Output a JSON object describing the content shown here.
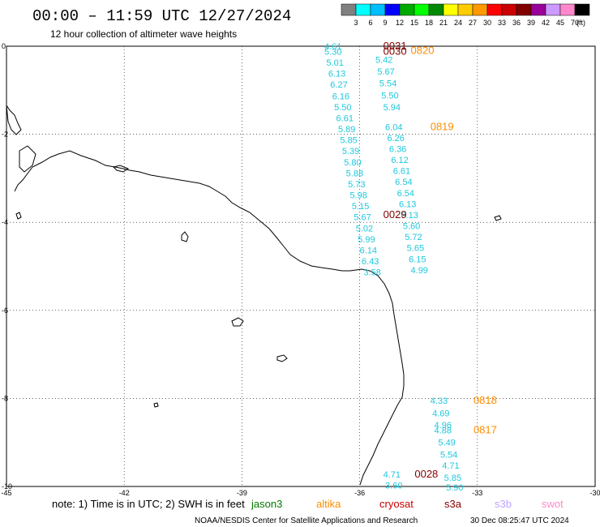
{
  "header": {
    "title": "00:00 – 11:59 UTC 12/27/2024",
    "subtitle": "12 hour collection of altimeter wave heights"
  },
  "scale": {
    "labels": [
      "3",
      "6",
      "9",
      "12",
      "15",
      "18",
      "21",
      "24",
      "27",
      "30",
      "33",
      "36",
      "39",
      "42",
      "45",
      "70"
    ],
    "unit": "(ft)",
    "colors": [
      "#808080",
      "#00ffff",
      "#00bfff",
      "#0000ff",
      "#00aa00",
      "#00ff00",
      "#008800",
      "#ffff00",
      "#ffcc00",
      "#ff9900",
      "#ff0000",
      "#cc0000",
      "#800000",
      "#990099",
      "#cc99ff",
      "#ff88cc",
      "#000000"
    ]
  },
  "map": {
    "x_ticks": [
      "-45",
      "-42",
      "-39",
      "-36",
      "-33",
      "-30"
    ],
    "y_ticks": [
      "0",
      "-2",
      "-4",
      "-6",
      "-8",
      "-10"
    ],
    "lon_range": [
      -45,
      -30
    ],
    "lat_range": [
      -10,
      0
    ],
    "grid": true
  },
  "colors": {
    "swh": "#1ec8dc",
    "jason": "#007a00",
    "altika": "#ff8c00",
    "cryosat": "#cc0000",
    "s3a": "#800000",
    "s3b": "#bfa3ff",
    "swot": "#ff88cc"
  },
  "tracks": [
    {
      "satellite": "s3a",
      "time": "0031",
      "time_lonlat": [
        -35.4,
        0.0
      ],
      "values": [
        {
          "v": "4.61",
          "lon": -36.9,
          "lat": 0.0
        }
      ]
    },
    {
      "satellite": "s3a",
      "time": "0030",
      "time_lonlat": [
        -35.4,
        -0.12
      ],
      "values": [
        {
          "v": "5.30",
          "lon": -36.9,
          "lat": -0.12
        },
        {
          "v": "5.01",
          "lon": -36.85,
          "lat": -0.37
        },
        {
          "v": "6.13",
          "lon": -36.8,
          "lat": -0.62
        },
        {
          "v": "6.27",
          "lon": -36.75,
          "lat": -0.87
        },
        {
          "v": "6.16",
          "lon": -36.7,
          "lat": -1.13
        },
        {
          "v": "5.50",
          "lon": -36.65,
          "lat": -1.38
        },
        {
          "v": "6.61",
          "lon": -36.6,
          "lat": -1.63
        },
        {
          "v": "5.89",
          "lon": -36.55,
          "lat": -1.88
        },
        {
          "v": "5.85",
          "lon": -36.5,
          "lat": -2.13
        },
        {
          "v": "5.39",
          "lon": -36.45,
          "lat": -2.38
        },
        {
          "v": "5.80",
          "lon": -36.4,
          "lat": -2.63
        },
        {
          "v": "5.88",
          "lon": -36.35,
          "lat": -2.88
        },
        {
          "v": "5.73",
          "lon": -36.3,
          "lat": -3.13
        },
        {
          "v": "5.98",
          "lon": -36.25,
          "lat": -3.38
        },
        {
          "v": "5.15",
          "lon": -36.2,
          "lat": -3.63
        },
        {
          "v": "5.67",
          "lon": -36.15,
          "lat": -3.88
        },
        {
          "v": "5.02",
          "lon": -36.1,
          "lat": -4.13
        },
        {
          "v": "5.99",
          "lon": -36.05,
          "lat": -4.38
        },
        {
          "v": "6.14",
          "lon": -36.0,
          "lat": -4.63
        },
        {
          "v": "6.43",
          "lon": -35.95,
          "lat": -4.88
        },
        {
          "v": "3.58",
          "lon": -35.9,
          "lat": -5.13
        }
      ]
    },
    {
      "satellite": "altika",
      "time": "0820",
      "time_lonlat": [
        -34.7,
        -0.1
      ],
      "values": [
        {
          "v": "5.42",
          "lon": -35.6,
          "lat": -0.3
        },
        {
          "v": "5.67",
          "lon": -35.55,
          "lat": -0.57
        },
        {
          "v": "5.54",
          "lon": -35.5,
          "lat": -0.84
        },
        {
          "v": "5.50",
          "lon": -35.45,
          "lat": -1.11
        },
        {
          "v": "5.94",
          "lon": -35.4,
          "lat": -1.38
        }
      ]
    },
    {
      "satellite": "altika",
      "time": "0819",
      "time_lonlat": [
        -34.2,
        -1.83
      ],
      "values": [
        {
          "v": "6.04",
          "lon": -35.35,
          "lat": -1.83
        },
        {
          "v": "6.26",
          "lon": -35.3,
          "lat": -2.08
        },
        {
          "v": "6.36",
          "lon": -35.25,
          "lat": -2.33
        },
        {
          "v": "6.12",
          "lon": -35.2,
          "lat": -2.58
        },
        {
          "v": "6.61",
          "lon": -35.15,
          "lat": -2.83
        },
        {
          "v": "6.54",
          "lon": -35.1,
          "lat": -3.08
        },
        {
          "v": "6.54",
          "lon": -35.05,
          "lat": -3.33
        },
        {
          "v": "6.13",
          "lon": -35.0,
          "lat": -3.58
        },
        {
          "v": "6.13",
          "lon": -34.95,
          "lat": -3.83
        }
      ]
    },
    {
      "satellite": "s3a",
      "time": "0029",
      "time_lonlat": [
        -35.4,
        -3.83
      ],
      "values": [
        {
          "v": "5.60",
          "lon": -34.9,
          "lat": -4.08
        },
        {
          "v": "5.72",
          "lon": -34.85,
          "lat": -4.33
        },
        {
          "v": "5.65",
          "lon": -34.8,
          "lat": -4.58
        },
        {
          "v": "6.15",
          "lon": -34.75,
          "lat": -4.83
        },
        {
          "v": "4.99",
          "lon": -34.7,
          "lat": -5.08
        }
      ]
    },
    {
      "satellite": "altika",
      "time": "0818",
      "time_lonlat": [
        -33.1,
        -8.05
      ],
      "values": [
        {
          "v": "4.33",
          "lon": -34.2,
          "lat": -8.05
        },
        {
          "v": "4.69",
          "lon": -34.15,
          "lat": -8.33
        },
        {
          "v": "4.96",
          "lon": -34.1,
          "lat": -8.6
        },
        {
          "v": "4.88",
          "lon": -34.1,
          "lat": -8.72
        }
      ]
    },
    {
      "satellite": "altika",
      "time": "0817",
      "time_lonlat": [
        -33.1,
        -8.72
      ],
      "values": [
        {
          "v": "5.49",
          "lon": -34.0,
          "lat": -9.0
        },
        {
          "v": "5.54",
          "lon": -33.95,
          "lat": -9.27
        },
        {
          "v": "4.71",
          "lon": -33.9,
          "lat": -9.52
        },
        {
          "v": "5.85",
          "lon": -33.85,
          "lat": -9.8
        },
        {
          "v": "5.90",
          "lon": -33.8,
          "lat": -10.02
        }
      ]
    },
    {
      "satellite": "s3a",
      "time": "0028",
      "time_lonlat": [
        -34.6,
        -9.72
      ],
      "values": [
        {
          "v": "4.71",
          "lon": -35.4,
          "lat": -9.72
        },
        {
          "v": "3.60",
          "lon": -35.35,
          "lat": -9.97
        }
      ]
    }
  ],
  "footer": {
    "note": "note: 1) Time is in UTC; 2) SWH is in feet",
    "legend": [
      {
        "key": "jason",
        "label": "jason3"
      },
      {
        "key": "altika",
        "label": "altika"
      },
      {
        "key": "cryosat",
        "label": "cryosat"
      },
      {
        "key": "s3a",
        "label": "s3a"
      },
      {
        "key": "s3b",
        "label": "s3b"
      },
      {
        "key": "swot",
        "label": "swot"
      }
    ],
    "credit": "NOAA/NESDIS Center for Satellite Applications and Research",
    "timestamp": "30 Dec 08:25:47 UTC 2024"
  }
}
